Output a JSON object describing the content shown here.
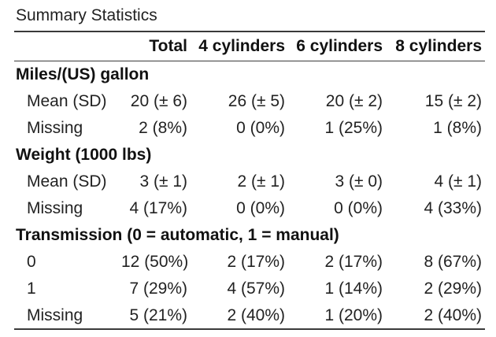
{
  "caption": "Summary Statistics",
  "header": {
    "blank": "",
    "columns": [
      "Total",
      "4 cylinders",
      "6 cylinders",
      "8 cylinders"
    ]
  },
  "groups": [
    {
      "label": "Miles/(US) gallon",
      "rows": [
        {
          "label": "Mean (SD)",
          "values": [
            "20 (± 6)",
            "26 (± 5)",
            "20 (± 2)",
            "15 (± 2)"
          ]
        },
        {
          "label": "Missing",
          "values": [
            "2 (8%)",
            "0 (0%)",
            "1 (25%)",
            "1 (8%)"
          ]
        }
      ]
    },
    {
      "label": "Weight (1000 lbs)",
      "rows": [
        {
          "label": "Mean (SD)",
          "values": [
            "3 (± 1)",
            "2 (± 1)",
            "3 (± 0)",
            "4 (± 1)"
          ]
        },
        {
          "label": "Missing",
          "values": [
            "4 (17%)",
            "0 (0%)",
            "0 (0%)",
            "4 (33%)"
          ]
        }
      ]
    },
    {
      "label": "Transmission (0 = automatic, 1 = manual)",
      "rows": [
        {
          "label": "0",
          "values": [
            "12 (50%)",
            "2 (17%)",
            "2 (17%)",
            "8 (67%)"
          ]
        },
        {
          "label": "1",
          "values": [
            "7 (29%)",
            "4 (57%)",
            "1 (14%)",
            "2 (29%)"
          ]
        },
        {
          "label": "Missing",
          "values": [
            "5 (21%)",
            "2 (40%)",
            "1 (20%)",
            "2 (40%)"
          ]
        }
      ]
    }
  ]
}
